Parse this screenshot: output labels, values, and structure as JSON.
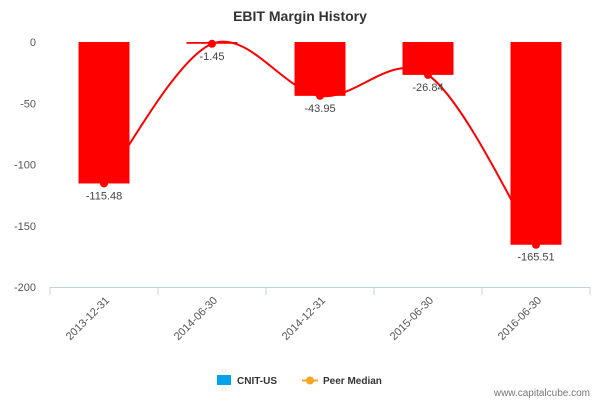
{
  "chart_data": {
    "type": "bar",
    "title": "EBIT Margin History",
    "categories": [
      "2013-12-31",
      "2014-06-30",
      "2014-12-31",
      "2015-06-30",
      "2016-06-30"
    ],
    "series": [
      {
        "name": "CNIT-US",
        "type": "bar",
        "values": [
          -115.48,
          -1.45,
          -43.95,
          -26.84,
          -165.51
        ],
        "color": "#ff0000"
      },
      {
        "name": "Peer Median",
        "type": "line",
        "values": [
          -115.48,
          -1.45,
          -43.95,
          -26.84,
          -165.51
        ],
        "color": "#ff0000"
      }
    ],
    "data_labels": [
      "-115.48",
      "-1.45",
      "-43.95",
      "-26.84",
      "-165.51"
    ],
    "yticks": [
      0,
      -50,
      -100,
      -150,
      -200
    ],
    "ylim": [
      -200,
      0
    ],
    "grid": false,
    "legend": {
      "placement": "bottom-center",
      "items": [
        {
          "name": "CNIT-US",
          "color": "#00a2e8",
          "marker": "square"
        },
        {
          "name": "Peer Median",
          "color": "#f5a623",
          "marker": "line-dot"
        }
      ]
    }
  },
  "watermark": "www.capitalcube.com"
}
